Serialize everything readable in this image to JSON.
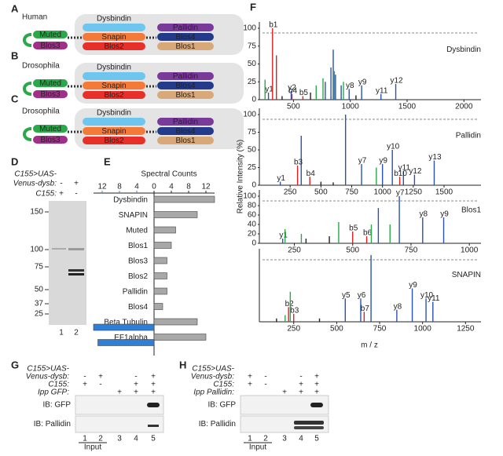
{
  "panels": [
    "A",
    "B",
    "C",
    "D",
    "E",
    "F",
    "G",
    "H"
  ],
  "diagrams": [
    {
      "species": "Human",
      "proteins": [
        "Muted",
        "Blos3",
        "Dysbindin",
        "Snapin",
        "Blos2",
        "Pallidin",
        "Blos4",
        "Blos1"
      ]
    },
    {
      "species": "Drosophila",
      "proteins": [
        "Muted",
        "Blos3",
        "Dysbindin",
        "Snapin",
        "Blos2",
        "Pallidin",
        "Blos4",
        "Blos1"
      ]
    },
    {
      "species": "Drosophila",
      "proteins": [
        "Muted",
        "Blos3",
        "Dysbindin",
        "Snapin",
        "Blos2",
        "Pallidin",
        "Blos4",
        "Blos1"
      ]
    }
  ],
  "gel_d": {
    "rows": [
      {
        "label_lines": [
          "C155>UAS-",
          "Venus-dysb:"
        ],
        "signs": [
          "-",
          "+"
        ]
      },
      {
        "label_lines": [
          "C155:"
        ],
        "signs": [
          "+",
          "-"
        ]
      }
    ],
    "markers": [
      150,
      100,
      75,
      50,
      37,
      25
    ],
    "lanes": [
      1,
      2
    ]
  },
  "blot_g": {
    "rows": [
      {
        "label_lines": [
          "C155>UAS-",
          "Venus-dysb:"
        ],
        "signs": [
          "-",
          "+",
          null,
          "-",
          "+"
        ]
      },
      {
        "label_lines": [
          "C155:"
        ],
        "signs": [
          "+",
          "-",
          null,
          "+",
          "+"
        ]
      },
      {
        "label_lines": [
          "Ipp GFP:"
        ],
        "signs": [
          null,
          null,
          "+",
          "+",
          "+"
        ]
      }
    ],
    "blots": [
      "IB: GFP",
      "IB: Pallidin"
    ],
    "lanes": [
      1,
      2,
      3,
      4,
      5
    ],
    "input": "Input"
  },
  "blot_h": {
    "rows": [
      {
        "label_lines": [
          "C155>UAS-",
          "Venus-dysb:"
        ],
        "signs": [
          "+",
          "-",
          null,
          "-",
          "+"
        ]
      },
      {
        "label_lines": [
          "C155:"
        ],
        "signs": [
          "+",
          "-",
          null,
          "+",
          "+"
        ]
      },
      {
        "label_lines": [
          "Ipp Pallidin:"
        ],
        "signs": [
          null,
          null,
          "+",
          "+",
          "+"
        ]
      }
    ],
    "blots": [
      "IB: GFP",
      "IB: Pallidin"
    ],
    "lanes": [
      1,
      2,
      3,
      4,
      5
    ],
    "input": "Input"
  },
  "chart_data": [
    {
      "type": "bar",
      "title": "Spectral Counts",
      "categories": [
        "Dysbindin",
        "SNAPIN",
        "Muted",
        "Blos1",
        "Blos3",
        "Blos2",
        "Pallidin",
        "Blos4",
        "Beta Tubulin",
        "EF1alpha"
      ],
      "series": [
        {
          "color": "#a8a8a8",
          "values": [
            14,
            10,
            5,
            4,
            3,
            3,
            3,
            2,
            10,
            12
          ]
        },
        {
          "color": "#2f7fd8",
          "axis": "x2",
          "values": [
            null,
            null,
            null,
            null,
            null,
            null,
            null,
            null,
            14,
            13
          ]
        }
      ],
      "xlim": [
        0,
        14
      ],
      "xticks": [
        0,
        4,
        8,
        12
      ],
      "x2lim": [
        0,
        14
      ],
      "x2ticks": [
        12,
        8,
        4
      ],
      "x2color": "#2f7fd8"
    },
    {
      "type": "spectrum",
      "name": "Dysbindin",
      "xlim": [
        200,
        2150
      ],
      "xticks": [
        500,
        1000,
        1500,
        2000
      ],
      "ylim": [
        0,
        100
      ],
      "yticks": [
        0,
        25,
        50,
        75,
        100
      ],
      "series": [
        {
          "color": "#2a52b0",
          "x": [
            280,
            480,
            780,
            830,
            850,
            870,
            920,
            990,
            1100,
            1270,
            1400
          ],
          "values": [
            10,
            12,
            25,
            45,
            70,
            35,
            20,
            15,
            20,
            8,
            22
          ],
          "labels": [
            "y1",
            "y2",
            null,
            null,
            null,
            null,
            null,
            "y8",
            "y9",
            "y11",
            "y12"
          ]
        },
        {
          "color": "#e02020",
          "x": [
            316,
            350,
            487,
            583
          ],
          "values": [
            100,
            62,
            8,
            5
          ],
          "labels": [
            "b1",
            null,
            "b4",
            "b5"
          ]
        },
        {
          "color": "#2aa84a",
          "x": [
            250,
            700,
            760,
            860,
            940
          ],
          "values": [
            28,
            20,
            30,
            40,
            25
          ],
          "labels": [
            null,
            null,
            null,
            null,
            null
          ]
        },
        {
          "color": "#222222",
          "x": [
            400,
            650,
            1050
          ],
          "values": [
            5,
            10,
            6
          ],
          "labels": [
            null,
            null,
            null
          ]
        }
      ]
    },
    {
      "type": "spectrum",
      "name": "Pallidin",
      "xlim": [
        0,
        1800
      ],
      "xticks": [
        250,
        500,
        750,
        1000,
        1250,
        1500
      ],
      "ylim": [
        0,
        100
      ],
      "yticks": [
        0,
        25,
        50,
        75,
        100
      ],
      "ylabel": "Relative Intensity (%)",
      "series": [
        {
          "color": "#2a52b0",
          "x": [
            170,
            340,
            700,
            830,
            1000,
            1080,
            1170,
            1260,
            1420
          ],
          "values": [
            5,
            70,
            100,
            30,
            30,
            50,
            20,
            15,
            35
          ],
          "labels": [
            "y1",
            null,
            null,
            "y7",
            "y9",
            "y10",
            "y11",
            "y12",
            "y13"
          ]
        },
        {
          "color": "#e02020",
          "x": [
            310,
            410,
            1140
          ],
          "values": [
            28,
            12,
            12
          ],
          "labels": [
            "b3",
            "b4",
            "b10"
          ]
        },
        {
          "color": "#2aa84a",
          "x": [
            950
          ],
          "values": [
            25
          ],
          "labels": [
            null
          ]
        },
        {
          "color": "#222222",
          "x": [
            500,
            600
          ],
          "values": [
            5,
            4
          ],
          "labels": [
            null,
            null
          ]
        }
      ]
    },
    {
      "type": "spectrum",
      "name": "Blos1",
      "xlim": [
        100,
        1050
      ],
      "xticks": [
        250,
        500,
        750,
        1000
      ],
      "ylim": [
        0,
        100
      ],
      "yticks": [
        0,
        20,
        40,
        60,
        80,
        100
      ],
      "series": [
        {
          "color": "#2a52b0",
          "x": [
            200,
            610,
            700,
            800,
            890
          ],
          "values": [
            10,
            75,
            100,
            55,
            55
          ],
          "labels": [
            "y1",
            null,
            "y7",
            "y8",
            "y9"
          ]
        },
        {
          "color": "#e02020",
          "x": [
            500,
            560
          ],
          "values": [
            25,
            15
          ],
          "labels": [
            "b5",
            "b6"
          ]
        },
        {
          "color": "#2aa84a",
          "x": [
            210,
            280,
            440,
            580,
            660
          ],
          "values": [
            30,
            20,
            45,
            40,
            40
          ],
          "labels": [
            null,
            null,
            null,
            null,
            null
          ]
        },
        {
          "color": "#222222",
          "x": [
            300,
            400
          ],
          "values": [
            10,
            15
          ],
          "labels": [
            null,
            null
          ]
        }
      ]
    },
    {
      "type": "spectrum",
      "name": "SNAPIN",
      "xlim": [
        50,
        1340
      ],
      "xticks": [
        250,
        500,
        750,
        1000,
        1250
      ],
      "ylim": [
        0,
        100
      ],
      "xlabel": "m / z",
      "series": [
        {
          "color": "#2a52b0",
          "x": [
            550,
            640,
            700,
            850,
            940,
            1020,
            1060
          ],
          "values": [
            35,
            35,
            100,
            18,
            50,
            35,
            30
          ],
          "labels": [
            "y5",
            "y6",
            null,
            "y8",
            "y9",
            "y10",
            "y11"
          ]
        },
        {
          "color": "#e02020",
          "x": [
            220,
            250,
            660
          ],
          "values": [
            22,
            12,
            15
          ],
          "labels": [
            "b2",
            "b3",
            "b7"
          ]
        },
        {
          "color": "#2aa84a",
          "x": [
            200,
            230
          ],
          "values": [
            10,
            45
          ],
          "labels": [
            null,
            null
          ]
        },
        {
          "color": "#222222",
          "x": [
            150,
            400
          ],
          "values": [
            5,
            5
          ],
          "labels": [
            null,
            null
          ]
        }
      ]
    }
  ]
}
